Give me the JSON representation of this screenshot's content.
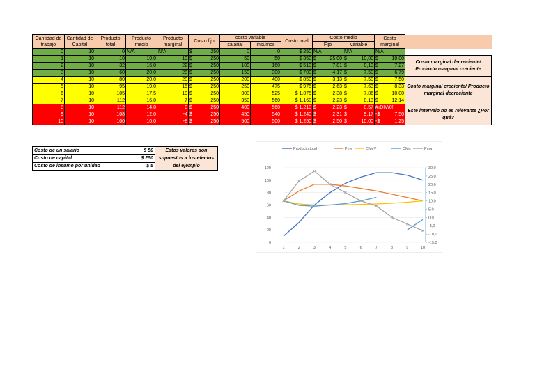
{
  "headers": {
    "trabajo": "Cantidad de trabajo",
    "capital": "Cantidad de Capital",
    "ptotal": "Producto total",
    "pmedio": "Producto medio",
    "pmarginal": "Producto marginal",
    "cfijo": "Costo fijo",
    "cvariable": "costo variable",
    "salarial": "salarial",
    "insumos": "insumos",
    "ctotal": "Costo total",
    "cmedio": "Costo medio",
    "fijo": "Fijo",
    "variable": "variable",
    "cmarginal": "Costo marginal"
  },
  "rows": [
    {
      "band": "g",
      "t": "0",
      "k": "10",
      "pt": "0",
      "pme": "N/A",
      "pmg": "N/A",
      "cf": "250",
      "sal": "0",
      "ins": "0",
      "ctot": "$ 250",
      "cmf_s": "N/A",
      "cmf": "",
      "cmv_s": "N/A",
      "cmv": "",
      "cmg_s": "N/A",
      "cmg": ""
    },
    {
      "band": "g",
      "t": "1",
      "k": "10",
      "pt": "10",
      "pme": "10,0",
      "pmg": "10",
      "cf": "250",
      "sal": "50",
      "ins": "50",
      "ctot": "$ 350",
      "cmf_s": "$",
      "cmf": "25,00",
      "cmv_s": "$",
      "cmv": "10,00",
      "cmg_s": "$",
      "cmg": "10,00"
    },
    {
      "band": "g",
      "t": "2",
      "k": "10",
      "pt": "32",
      "pme": "16,0",
      "pmg": "22",
      "cf": "250",
      "sal": "100",
      "ins": "160",
      "ctot": "$ 510",
      "cmf_s": "$",
      "cmf": "7,81",
      "cmv_s": "$",
      "cmv": "8,13",
      "cmg_s": "$",
      "cmg": "7,27"
    },
    {
      "band": "g",
      "t": "3",
      "k": "10",
      "pt": "60",
      "pme": "20,0",
      "pmg": "28",
      "cf": "250",
      "sal": "150",
      "ins": "300",
      "ctot": "$ 700",
      "cmf_s": "$",
      "cmf": "4,17",
      "cmv_s": "$",
      "cmv": "7,50",
      "cmg_s": "$",
      "cmg": "6,79"
    },
    {
      "band": "y",
      "t": "4",
      "k": "10",
      "pt": "80",
      "pme": "20,0",
      "pmg": "20",
      "cf": "250",
      "sal": "200",
      "ins": "400",
      "ctot": "$ 850",
      "cmf_s": "$",
      "cmf": "3,13",
      "cmv_s": "$",
      "cmv": "7,50",
      "cmg_s": "$",
      "cmg": "7,50"
    },
    {
      "band": "y",
      "t": "5",
      "k": "10",
      "pt": "95",
      "pme": "19,0",
      "pmg": "15",
      "cf": "250",
      "sal": "250",
      "ins": "475",
      "ctot": "$ 975",
      "cmf_s": "$",
      "cmf": "2,63",
      "cmv_s": "$",
      "cmv": "7,63",
      "cmg_s": "$",
      "cmg": "8,33"
    },
    {
      "band": "y",
      "t": "6",
      "k": "10",
      "pt": "105",
      "pme": "17,5",
      "pmg": "10",
      "cf": "250",
      "sal": "300",
      "ins": "525",
      "ctot": "$ 1.075",
      "cmf_s": "$",
      "cmf": "2,38",
      "cmv_s": "$",
      "cmv": "7,86",
      "cmg_s": "$",
      "cmg": "10,00"
    },
    {
      "band": "y",
      "t": "7",
      "k": "10",
      "pt": "112",
      "pme": "16,0",
      "pmg": "7",
      "cf": "250",
      "sal": "350",
      "ins": "560",
      "ctot": "$ 1.160",
      "cmf_s": "$",
      "cmf": "2,23",
      "cmv_s": "$",
      "cmv": "8,13",
      "cmg_s": "$",
      "cmg": "12,14"
    },
    {
      "band": "rd",
      "t": "8",
      "k": "10",
      "pt": "112",
      "pme": "14,0",
      "pmg": "0",
      "cf": "250",
      "sal": "400",
      "ins": "560",
      "ctot": "$ 1.210",
      "cmf_s": "$",
      "cmf": "2,23",
      "cmv_s": "$",
      "cmv": "8,57",
      "cmg_s": "#¡DIV/0!",
      "cmg": ""
    },
    {
      "band": "rd",
      "t": "9",
      "k": "10",
      "pt": "108",
      "pme": "12,0",
      "pmg": "-4",
      "cf": "250",
      "sal": "450",
      "ins": "540",
      "ctot": "$ 1.240",
      "cmf_s": "$",
      "cmf": "2,31",
      "cmv_s": "$",
      "cmv": "9,17",
      "cmg_s": "-$",
      "cmg": "7,50"
    },
    {
      "band": "rd",
      "t": "10",
      "k": "10",
      "pt": "100",
      "pme": "10,0",
      "pmg": "-8",
      "cf": "250",
      "sal": "500",
      "ins": "500",
      "ctot": "$ 1.250",
      "cmf_s": "$",
      "cmf": "2,50",
      "cmv_s": "$",
      "cmv": "10,00",
      "cmg_s": "-$",
      "cmg": "1,25"
    }
  ],
  "notes": {
    "note1": "Costo marginal decreciente/ Producto marginal creciente",
    "note2": "Costo marginal creciente/ Producto marginal decreciente",
    "note3": "Este intervalo no es relevante ¿Por qué?"
  },
  "costs": {
    "salario_label": "Costo de un salario",
    "salario_value": "$ 50",
    "capital_label": "Costo de capital",
    "capital_value": "$ 250",
    "insumo_label": "Costo de insumo por unidad",
    "insumo_value": "$ 5",
    "note": "Estos valores son supuestos a los efectos del ejemplo"
  },
  "colors": {
    "green": "#70ad47",
    "yellow": "#ffff00",
    "red": "#ff0000",
    "header": "#f8cbad",
    "note": "#fbe5d6"
  },
  "chart_data": {
    "type": "line",
    "x": [
      1,
      2,
      3,
      4,
      5,
      6,
      7,
      8,
      9,
      10
    ],
    "left_ylim": [
      0,
      120
    ],
    "left_yticks": [
      "0",
      "20",
      "40",
      "60",
      "80",
      "100",
      "120"
    ],
    "right_ylim": [
      -15,
      30
    ],
    "right_yticks": [
      "-15,0",
      "-10,0",
      "-5,0",
      "0,0",
      "5,0",
      "10,0",
      "15,0",
      "20,0",
      "25,0",
      "30,0"
    ],
    "legend_position": "top",
    "series": [
      {
        "name": "Producto total",
        "axis": "left",
        "color": "#4472c4",
        "values": [
          10,
          32,
          60,
          80,
          95,
          105,
          112,
          112,
          108,
          100
        ]
      },
      {
        "name": "Pme",
        "axis": "right",
        "color": "#ed7d31",
        "values": [
          10,
          16,
          20,
          20,
          19,
          17.5,
          16,
          14,
          12,
          10
        ]
      },
      {
        "name": "CMeV",
        "axis": "right",
        "color": "#ffc000",
        "values": [
          10,
          8.13,
          7.5,
          7.5,
          7.63,
          7.86,
          8.13,
          8.57,
          9.17,
          10
        ]
      },
      {
        "name": "CMg",
        "axis": "right",
        "color": "#5b9bd5",
        "values": [
          10,
          7.27,
          6.79,
          7.5,
          8.33,
          10,
          12.14,
          null,
          -7.5,
          -1.25
        ]
      },
      {
        "name": "Pmg",
        "axis": "right",
        "color": "#a5a5a5",
        "values": [
          10,
          22,
          28,
          20,
          15,
          10,
          7,
          0,
          -4,
          -8
        ]
      }
    ]
  }
}
